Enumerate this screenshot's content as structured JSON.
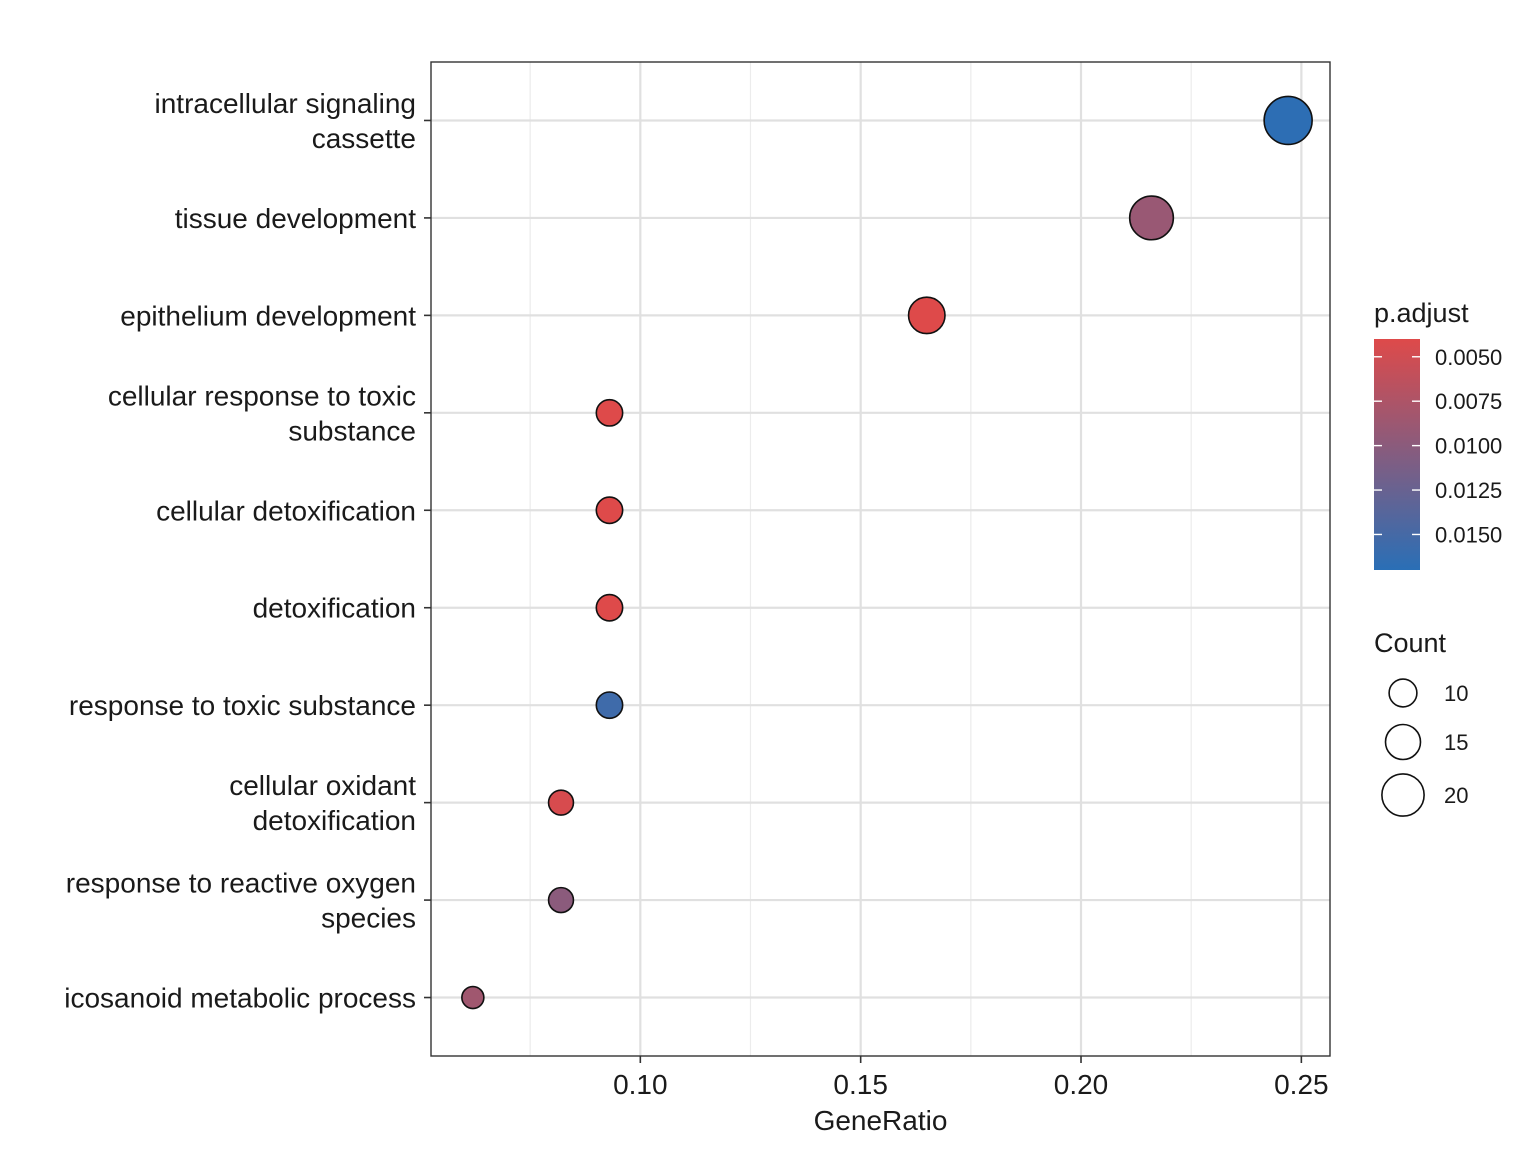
{
  "chart_data": {
    "type": "scatter",
    "title": "",
    "xlabel": "GeneRatio",
    "ylabel": "",
    "xlim": [
      0.0525,
      0.2565
    ],
    "x_ticks": [
      0.1,
      0.15,
      0.2,
      0.25
    ],
    "x_tick_labels": [
      "0.10",
      "0.15",
      "0.20",
      "0.25"
    ],
    "grid": true,
    "categories": [
      [
        "intracellular signaling",
        "cassette"
      ],
      [
        "tissue development"
      ],
      [
        "epithelium development"
      ],
      [
        "cellular response to toxic",
        "substance"
      ],
      [
        "cellular detoxification"
      ],
      [
        "detoxification"
      ],
      [
        "response to toxic substance"
      ],
      [
        "cellular oxidant",
        "detoxification"
      ],
      [
        "response to reactive oxygen",
        "species"
      ],
      [
        "icosanoid metabolic process"
      ]
    ],
    "points": [
      {
        "gene_ratio": 0.247,
        "count": 24,
        "p_adjust": 0.0168
      },
      {
        "gene_ratio": 0.216,
        "count": 21,
        "p_adjust": 0.009
      },
      {
        "gene_ratio": 0.165,
        "count": 16,
        "p_adjust": 0.004
      },
      {
        "gene_ratio": 0.093,
        "count": 9,
        "p_adjust": 0.004
      },
      {
        "gene_ratio": 0.093,
        "count": 9,
        "p_adjust": 0.004
      },
      {
        "gene_ratio": 0.093,
        "count": 9,
        "p_adjust": 0.004
      },
      {
        "gene_ratio": 0.093,
        "count": 9,
        "p_adjust": 0.0155
      },
      {
        "gene_ratio": 0.082,
        "count": 8,
        "p_adjust": 0.0045
      },
      {
        "gene_ratio": 0.082,
        "count": 8,
        "p_adjust": 0.01
      },
      {
        "gene_ratio": 0.062,
        "count": 6,
        "p_adjust": 0.0085
      }
    ],
    "legend": {
      "position": "right",
      "color": {
        "title": "p.adjust",
        "range": [
          0.004,
          0.017
        ],
        "low_color": "#DE4A4A",
        "high_color": "#2A6FB6",
        "ticks": [
          0.005,
          0.0075,
          0.01,
          0.0125,
          0.015
        ],
        "tick_labels": [
          "0.0050",
          "0.0075",
          "0.0100",
          "0.0125",
          "0.0150"
        ]
      },
      "size": {
        "title": "Count",
        "range": [
          6,
          24
        ],
        "values": [
          10,
          15,
          20
        ],
        "labels": [
          "10",
          "15",
          "20"
        ]
      }
    }
  }
}
